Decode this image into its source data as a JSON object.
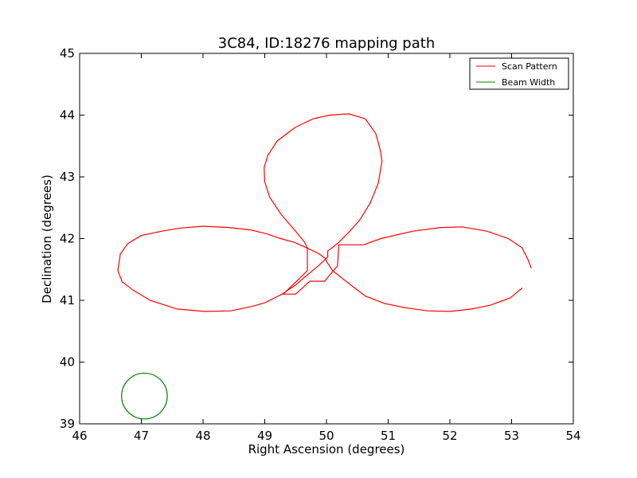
{
  "chart_data": {
    "type": "line",
    "title": "3C84, ID:18276 mapping path",
    "xlabel": "Right Ascension (degrees)",
    "ylabel": "Declination (degrees)",
    "xlim": [
      46,
      54
    ],
    "ylim": [
      39,
      45
    ],
    "xticks": [
      "46",
      "47",
      "48",
      "49",
      "50",
      "51",
      "52",
      "53",
      "54"
    ],
    "yticks": [
      "39",
      "40",
      "41",
      "42",
      "43",
      "44",
      "45"
    ],
    "grid": false,
    "legend_position": "top-right",
    "series": [
      {
        "name": "Scan Pattern",
        "color": "#ff0000",
        "x": [
          53.17,
          52.98,
          52.65,
          52.35,
          52.0,
          51.64,
          51.28,
          50.94,
          50.63,
          50.38,
          50.1,
          50.02,
          49.98,
          49.87,
          49.68,
          49.48,
          49.26,
          49.02,
          48.77,
          48.42,
          48.0,
          47.63,
          47.33,
          47.0,
          46.78,
          46.66,
          46.62,
          46.69,
          46.86,
          47.14,
          47.58,
          48.02,
          48.45,
          48.78,
          49.0,
          49.28,
          49.5,
          49.7,
          49.88,
          50.02,
          50.02,
          50.1,
          50.2,
          50.36,
          50.54,
          50.71,
          50.84,
          50.9,
          50.88,
          50.8,
          50.63,
          50.36,
          50.05,
          49.78,
          49.49,
          49.2,
          49.05,
          48.99,
          49.0,
          49.08,
          49.26,
          49.5,
          49.64,
          49.69,
          49.69,
          49.3,
          49.5,
          49.73,
          49.97,
          50.18,
          50.2,
          50.6,
          50.88,
          51.4,
          51.85,
          52.2,
          52.6,
          52.95,
          53.17,
          53.27,
          53.32
        ],
        "y": [
          41.2,
          41.04,
          40.92,
          40.86,
          40.82,
          40.83,
          40.88,
          40.95,
          41.07,
          41.26,
          41.48,
          41.6,
          41.68,
          41.76,
          41.85,
          41.94,
          42.0,
          42.08,
          42.14,
          42.18,
          42.2,
          42.17,
          42.12,
          42.05,
          41.92,
          41.75,
          41.48,
          41.3,
          41.17,
          41.0,
          40.86,
          40.82,
          40.83,
          40.9,
          40.96,
          41.1,
          41.25,
          41.42,
          41.57,
          41.7,
          41.8,
          41.86,
          41.94,
          42.1,
          42.3,
          42.58,
          42.9,
          43.25,
          43.4,
          43.7,
          43.94,
          44.02,
          44.0,
          43.94,
          43.8,
          43.58,
          43.35,
          43.15,
          42.92,
          42.67,
          42.4,
          42.12,
          41.95,
          41.85,
          41.48,
          41.1,
          41.1,
          41.31,
          41.31,
          41.56,
          41.9,
          41.9,
          42.0,
          42.12,
          42.18,
          42.19,
          42.12,
          42.0,
          41.85,
          41.65,
          41.52
        ]
      },
      {
        "name": "Beam Width",
        "color": "#008000",
        "shape": "circle",
        "center": [
          47.05,
          39.45
        ],
        "radius_deg": 0.37
      }
    ]
  }
}
